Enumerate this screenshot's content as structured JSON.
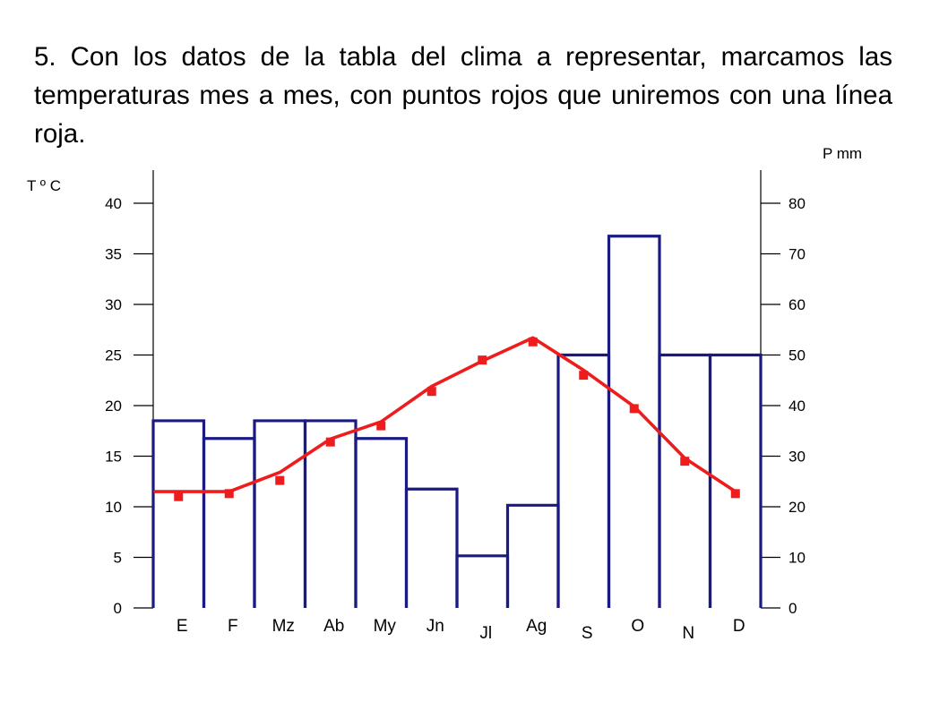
{
  "intro_text": "5. Con los datos de la tabla del clima a representar, marcamos las temperaturas mes a mes, con puntos rojos que uniremos con una línea roja.",
  "colors": {
    "temperature": "#ee1c1c",
    "precipitation": "#1a1a80",
    "axis_text": "#000000"
  },
  "chart_data": {
    "type": "bar",
    "categories": [
      "E",
      "F",
      "Mz",
      "Ab",
      "My",
      "Jn",
      "Jl",
      "Ag",
      "S",
      "O",
      "N",
      "D"
    ],
    "y_left": {
      "label": "T º C",
      "range": [
        0,
        40
      ],
      "ticks": [
        0,
        5,
        10,
        15,
        20,
        25,
        30,
        35,
        40
      ]
    },
    "y_right": {
      "label": "P mm",
      "range": [
        0,
        80
      ],
      "ticks": [
        0,
        10,
        20,
        30,
        40,
        50,
        60,
        70,
        80
      ]
    },
    "precipitation": {
      "axis": "right",
      "values": [
        37,
        33.5,
        37,
        37,
        33.5,
        23.5,
        10.3,
        20.3,
        50,
        73.5,
        50,
        50
      ]
    },
    "temperature_points": {
      "axis": "left",
      "values": [
        11,
        11.3,
        12.6,
        16.4,
        18,
        21.4,
        24.5,
        26.3,
        23,
        19.7,
        14.5,
        11.3
      ]
    },
    "temperature_line": {
      "axis": "left",
      "values": [
        11.5,
        11.5,
        13.4,
        16.7,
        18.4,
        21.9,
        24.4,
        26.7,
        23.5,
        19.9,
        14.8,
        11.5
      ]
    },
    "grid": false,
    "legend": "none"
  }
}
